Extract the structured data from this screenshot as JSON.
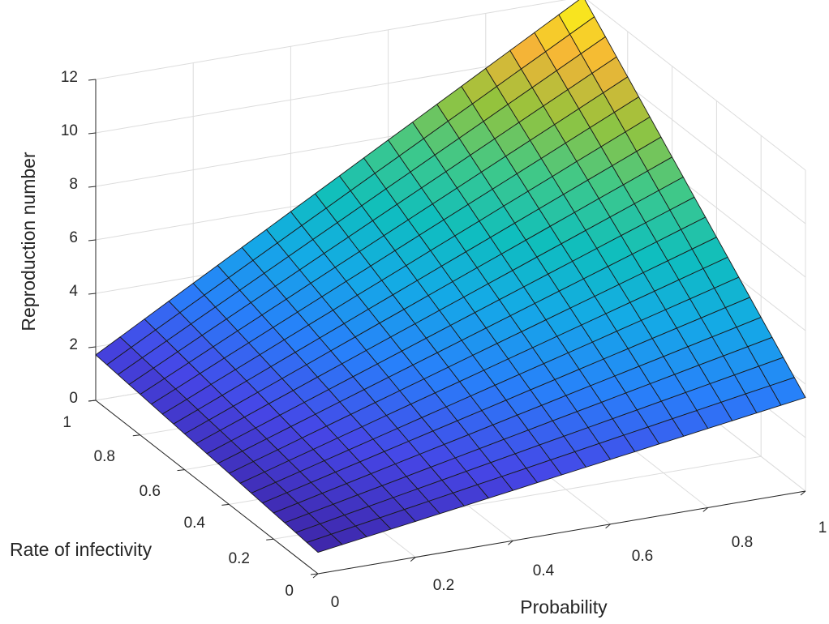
{
  "chart_data": {
    "type": "surface",
    "title": "",
    "xlabel": "Probability",
    "ylabel": "Rate of infectivity",
    "zlabel": "Reproduction number",
    "xlim": [
      0,
      1
    ],
    "ylim": [
      0,
      1
    ],
    "zlim": [
      0,
      12
    ],
    "x_ticks": [
      "0",
      "0.2",
      "0.4",
      "0.6",
      "0.8",
      "1"
    ],
    "y_ticks": [
      "0",
      "0.2",
      "0.4",
      "0.6",
      "0.8",
      "1"
    ],
    "z_ticks": [
      "0",
      "2",
      "4",
      "6",
      "8",
      "10",
      "12"
    ],
    "grid": true,
    "colormap": "parula",
    "mesh_count": 20,
    "corner_values": [
      {
        "x": 0,
        "y": 0,
        "z": 0.8
      },
      {
        "x": 0,
        "y": 1,
        "z": 1.7
      },
      {
        "x": 1,
        "y": 0,
        "z": 3.5
      },
      {
        "x": 1,
        "y": 1,
        "z": 12.0
      }
    ]
  }
}
